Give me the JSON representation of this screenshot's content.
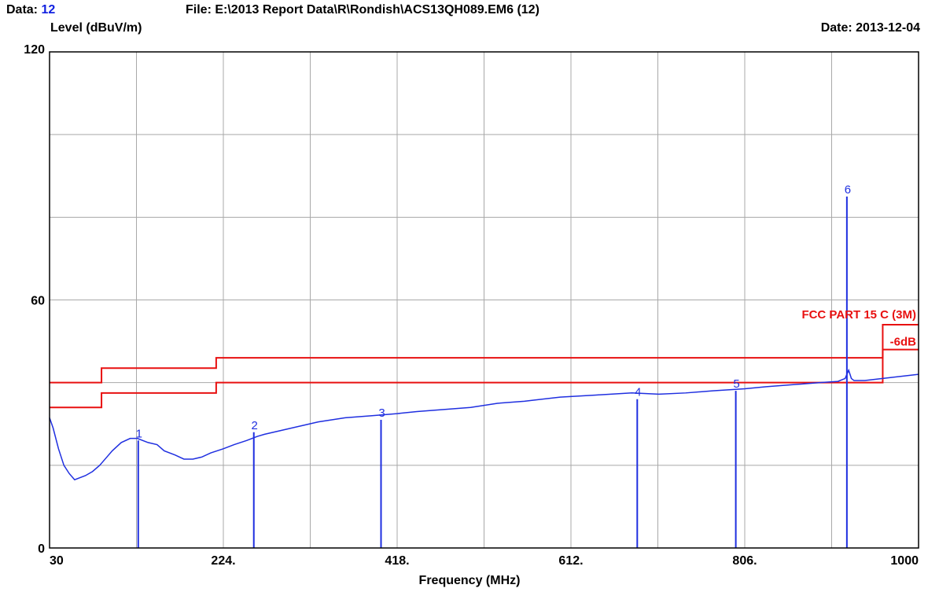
{
  "header": {
    "data_label": "Data:",
    "data_value": "12",
    "file_label": "File:",
    "file_value": "E:\\2013 Report Data\\R\\Rondish\\ACS13QH089.EM6  (12)",
    "date_label": "Date:",
    "date_value": "2013-12-04"
  },
  "colors": {
    "trace": "#1f2fe0",
    "limit": "#e81010",
    "grid": "#a8a8a8",
    "frame": "#000000"
  },
  "chart_data": {
    "type": "line",
    "title": "",
    "xlabel": "Frequency (MHz)",
    "ylabel": "Level (dBuV/m)",
    "xlim": [
      30,
      1000
    ],
    "ylim": [
      0,
      120
    ],
    "x_ticks": [
      30,
      224,
      418,
      612,
      806,
      1000
    ],
    "x_tick_labels": [
      "30",
      "224.",
      "418.",
      "612.",
      "806.",
      "1000"
    ],
    "y_ticks": [
      0,
      60,
      120
    ],
    "y_tick_labels": [
      "0",
      "60",
      "120"
    ],
    "x_grid_lines": 10,
    "y_grid_lines": 6,
    "grid": true,
    "series": [
      {
        "role": "measurement",
        "x": [
          30,
          34,
          40,
          46,
          52,
          58,
          64,
          70,
          78,
          86,
          94,
          100,
          110,
          120,
          128,
          140,
          150,
          158,
          170,
          180,
          190,
          200,
          210,
          224,
          236,
          250,
          262,
          270,
          290,
          310,
          330,
          360,
          390,
          418,
          440,
          470,
          500,
          530,
          560,
          600,
          640,
          680,
          710,
          740,
          770,
          806,
          830,
          860,
          890,
          910,
          918,
          922,
          925,
          928,
          940,
          960,
          980,
          1000
        ],
        "y": [
          31.5,
          29,
          24,
          20,
          18,
          16.5,
          17,
          17.5,
          18.5,
          20,
          22,
          23.5,
          25.5,
          26.5,
          26.5,
          25.5,
          25,
          23.5,
          22.5,
          21.5,
          21.5,
          22,
          23,
          24,
          25,
          26,
          27,
          27.5,
          28.5,
          29.5,
          30.5,
          31.5,
          32,
          32.5,
          33,
          33.5,
          34,
          35,
          35.5,
          36.5,
          37,
          37.5,
          37.2,
          37.5,
          38,
          38.5,
          39,
          39.5,
          40,
          40.3,
          41,
          43,
          41,
          40.5,
          40.5,
          41,
          41.5,
          42
        ]
      },
      {
        "name": "FCC PART 15 C (3M)",
        "role": "limit",
        "segments": [
          {
            "x": [
              30,
              88
            ],
            "y": [
              40,
              40
            ]
          },
          {
            "x": [
              88,
              216
            ],
            "y": [
              43.5,
              43.5
            ]
          },
          {
            "x": [
              216,
              960
            ],
            "y": [
              46,
              46
            ]
          },
          {
            "x": [
              960,
              1000
            ],
            "y": [
              54,
              54
            ]
          }
        ]
      },
      {
        "name": "-6dB",
        "role": "margin",
        "segments": [
          {
            "x": [
              30,
              88
            ],
            "y": [
              34,
              34
            ]
          },
          {
            "x": [
              88,
              216
            ],
            "y": [
              37.5,
              37.5
            ]
          },
          {
            "x": [
              216,
              960
            ],
            "y": [
              40,
              40
            ]
          },
          {
            "x": [
              960,
              1000
            ],
            "y": [
              48,
              48
            ]
          }
        ]
      }
    ],
    "markers": [
      {
        "label": "1",
        "x": 129,
        "y": 26
      },
      {
        "label": "2",
        "x": 258,
        "y": 28
      },
      {
        "label": "3",
        "x": 400,
        "y": 31
      },
      {
        "label": "4",
        "x": 686,
        "y": 36
      },
      {
        "label": "5",
        "x": 796,
        "y": 38
      },
      {
        "label": "6",
        "x": 920,
        "y": 85
      }
    ]
  }
}
